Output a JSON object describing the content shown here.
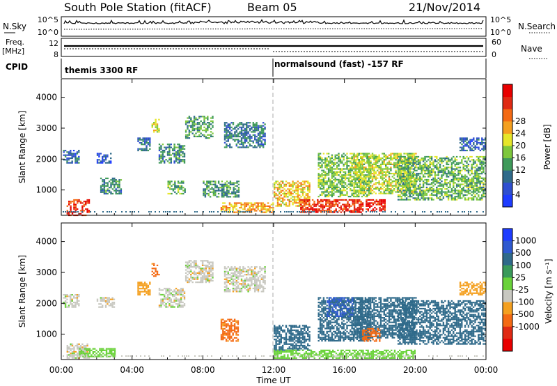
{
  "header": {
    "station": "South Pole Station (fitACF)",
    "beam": "Beam 05",
    "date": "21/Nov/2014"
  },
  "status_panels": {
    "nsky": {
      "label": "N.Sky",
      "ticks": [
        "10^5",
        "10^0"
      ]
    },
    "nsearch": {
      "label": "N.Search",
      "ticks": [
        "10^5",
        "10^0"
      ]
    },
    "freq": {
      "label_line1": "Freq.",
      "label_line2": "[MHz]",
      "ticks": [
        "12",
        "8"
      ]
    },
    "nave": {
      "label": "Nave",
      "ticks": [
        "60",
        "0"
      ]
    },
    "cpid": {
      "label": "CPID",
      "segments": [
        {
          "name": "themis 3300 RF",
          "start_hour": 0
        },
        {
          "name": "normalsound (fast) -157 RF",
          "start_hour": 12
        }
      ]
    }
  },
  "xaxis": {
    "label": "Time UT",
    "ticks": [
      "00:00",
      "04:00",
      "08:00",
      "12:00",
      "16:00",
      "20:00",
      "00:00"
    ],
    "range_hours": [
      0,
      24
    ]
  },
  "chart_data": [
    {
      "type": "heatmap",
      "name": "power",
      "ylabel": "Slant Range [km]",
      "yticks": [
        "1000",
        "2000",
        "3000",
        "4000"
      ],
      "ylim": [
        180,
        4600
      ],
      "xlim_hours": [
        0,
        24
      ],
      "colorbar": {
        "label": "Power [dB]",
        "ticks": [
          "4",
          "8",
          "12",
          "16",
          "20",
          "24",
          "28"
        ],
        "colors": [
          "#1e3cff",
          "#2f4fd0",
          "#2f6a8a",
          "#3f9a5a",
          "#7ec83c",
          "#e6e62a",
          "#f4a020",
          "#f46a14",
          "#e02a14",
          "#e80000"
        ]
      },
      "bands": [
        {
          "t0": 0.1,
          "t1": 1.0,
          "r0": 1900,
          "r1": 2300,
          "value": 6
        },
        {
          "t0": 0.3,
          "t1": 1.6,
          "r0": 200,
          "r1": 700,
          "value": 26
        },
        {
          "t0": 2.0,
          "t1": 2.8,
          "r0": 1900,
          "r1": 2200,
          "value": 5
        },
        {
          "t0": 2.2,
          "t1": 3.4,
          "r0": 900,
          "r1": 1400,
          "value": 9
        },
        {
          "t0": 4.3,
          "t1": 5.0,
          "r0": 2300,
          "r1": 2700,
          "value": 7
        },
        {
          "t0": 5.1,
          "t1": 5.5,
          "r0": 2900,
          "r1": 3300,
          "value": 16
        },
        {
          "t0": 5.5,
          "t1": 7.0,
          "r0": 1900,
          "r1": 2500,
          "value": 9
        },
        {
          "t0": 6.0,
          "t1": 7.0,
          "r0": 900,
          "r1": 1300,
          "value": 12
        },
        {
          "t0": 7.0,
          "t1": 8.6,
          "r0": 2700,
          "r1": 3400,
          "value": 11
        },
        {
          "t0": 8.0,
          "t1": 10.0,
          "r0": 800,
          "r1": 1300,
          "value": 10
        },
        {
          "t0": 9.2,
          "t1": 11.5,
          "r0": 2400,
          "r1": 3200,
          "value": 8
        },
        {
          "t0": 9.0,
          "t1": 12.0,
          "r0": 300,
          "r1": 600,
          "value": 20
        },
        {
          "t0": 12.0,
          "t1": 14.0,
          "r0": 500,
          "r1": 1300,
          "value": 18
        },
        {
          "t0": 13.5,
          "t1": 17.0,
          "r0": 300,
          "r1": 700,
          "value": 25
        },
        {
          "t0": 14.5,
          "t1": 17.5,
          "r0": 800,
          "r1": 2200,
          "value": 13
        },
        {
          "t0": 16.5,
          "t1": 20.0,
          "r0": 900,
          "r1": 2200,
          "value": 15
        },
        {
          "t0": 17.2,
          "t1": 18.3,
          "r0": 350,
          "r1": 700,
          "value": 27
        },
        {
          "t0": 19.0,
          "t1": 24.0,
          "r0": 700,
          "r1": 2100,
          "value": 12
        },
        {
          "t0": 22.5,
          "t1": 24.0,
          "r0": 2300,
          "r1": 2700,
          "value": 6
        }
      ]
    },
    {
      "type": "heatmap",
      "name": "velocity",
      "ylabel": "Slant Range [km]",
      "yticks": [
        "1000",
        "2000",
        "3000",
        "4000"
      ],
      "ylim": [
        180,
        4600
      ],
      "xlim_hours": [
        0,
        24
      ],
      "colorbar": {
        "label": "Velocity [m s⁻¹]",
        "ticks": [
          "1000",
          "500",
          "100",
          "25",
          "-25",
          "-100",
          "-500",
          "-1000"
        ],
        "colors": [
          "#1e3cff",
          "#2f5ad0",
          "#2f6a8a",
          "#3a9a5a",
          "#6ad23a",
          "#c8c8c0",
          "#f4a020",
          "#f46a14",
          "#e02a14",
          "#e80000"
        ]
      },
      "bands": [
        {
          "t0": 0.1,
          "t1": 1.0,
          "r0": 1900,
          "r1": 2300,
          "value": 0
        },
        {
          "t0": 0.3,
          "t1": 1.6,
          "r0": 250,
          "r1": 700,
          "value": 0
        },
        {
          "t0": 1.0,
          "t1": 3.0,
          "r0": 300,
          "r1": 550,
          "value": 60
        },
        {
          "t0": 2.0,
          "t1": 3.0,
          "r0": 1900,
          "r1": 2200,
          "value": 0
        },
        {
          "t0": 4.3,
          "t1": 5.0,
          "r0": 2300,
          "r1": 2700,
          "value": -60
        },
        {
          "t0": 5.1,
          "t1": 5.5,
          "r0": 2900,
          "r1": 3300,
          "value": -150
        },
        {
          "t0": 5.5,
          "t1": 7.0,
          "r0": 1900,
          "r1": 2500,
          "value": 0
        },
        {
          "t0": 7.0,
          "t1": 8.6,
          "r0": 2700,
          "r1": 3400,
          "value": 0
        },
        {
          "t0": 9.0,
          "t1": 10.0,
          "r0": 800,
          "r1": 1500,
          "value": -150
        },
        {
          "t0": 9.2,
          "t1": 11.5,
          "r0": 2400,
          "r1": 3200,
          "value": 0
        },
        {
          "t0": 12.0,
          "t1": 14.0,
          "r0": 500,
          "r1": 1300,
          "value": 200
        },
        {
          "t0": 12.0,
          "t1": 20.0,
          "r0": 250,
          "r1": 500,
          "value": 60
        },
        {
          "t0": 14.5,
          "t1": 17.5,
          "r0": 800,
          "r1": 2200,
          "value": 200
        },
        {
          "t0": 15.0,
          "t1": 16.5,
          "r0": 1600,
          "r1": 2200,
          "value": 600
        },
        {
          "t0": 16.5,
          "t1": 20.0,
          "r0": 900,
          "r1": 2200,
          "value": 200
        },
        {
          "t0": 17.0,
          "t1": 18.0,
          "r0": 800,
          "r1": 1200,
          "value": -200
        },
        {
          "t0": 19.0,
          "t1": 24.0,
          "r0": 700,
          "r1": 2100,
          "value": 200
        },
        {
          "t0": 22.5,
          "t1": 24.0,
          "r0": 2300,
          "r1": 2700,
          "value": -60
        }
      ]
    }
  ]
}
